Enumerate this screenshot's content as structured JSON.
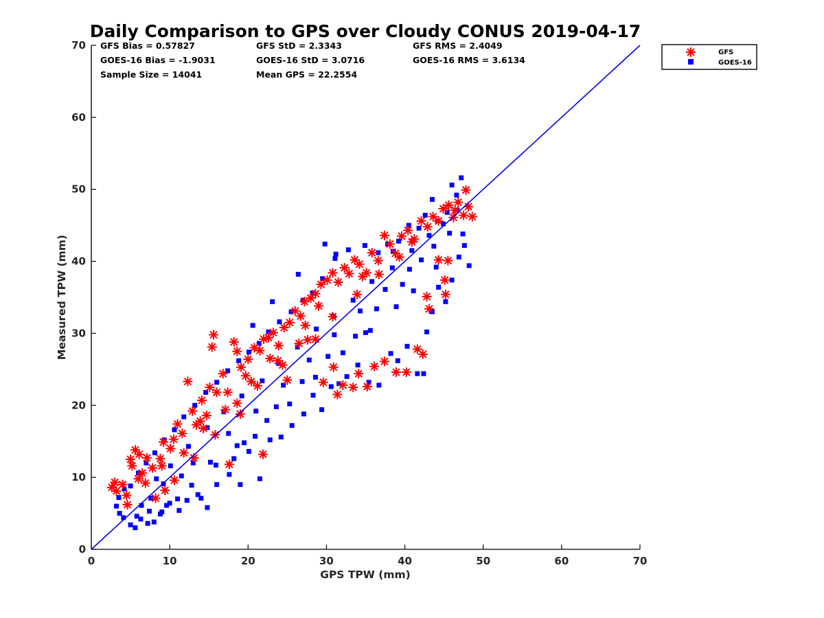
{
  "chart_data": {
    "type": "scatter",
    "title": "Daily Comparison to GPS over Cloudy CONUS 2019-04-17",
    "xlabel": "GPS TPW (mm)",
    "ylabel": "Measured TPW (mm)",
    "xlim": [
      0,
      70
    ],
    "ylim": [
      0,
      70
    ],
    "xticks": [
      "0",
      "10",
      "20",
      "30",
      "40",
      "50",
      "60",
      "70"
    ],
    "yticks": [
      "0",
      "10",
      "20",
      "30",
      "40",
      "50",
      "60",
      "70"
    ],
    "tick_values": [
      0,
      10,
      20,
      30,
      40,
      50,
      60,
      70
    ],
    "legend_position": "outside-top-right",
    "stats": {
      "gfs_bias": "GFS Bias = 0.57827",
      "gfs_std": "GFS StD = 2.3343",
      "gfs_rms": "GFS RMS = 2.4049",
      "goes_bias": "GOES-16 Bias = -1.9031",
      "goes_std": "GOES-16 StD = 3.0716",
      "goes_rms": "GOES-16 RMS = 3.6134",
      "sample_size": "Sample Size = 14041",
      "mean_gps": "Mean GPS = 22.2554"
    },
    "reference_line": {
      "name": "1:1 line",
      "x": [
        0,
        70
      ],
      "y": [
        0,
        70
      ],
      "color": "#0000e0"
    },
    "series": [
      {
        "name": "GFS",
        "marker": "asterisk",
        "color": "#ff0000",
        "bias": 0.57827,
        "std": 2.3343,
        "points": [
          [
            2.6,
            8.6
          ],
          [
            3.0,
            9.3
          ],
          [
            3.2,
            8.1
          ],
          [
            4.0,
            9.0
          ],
          [
            4.5,
            7.5
          ],
          [
            5.0,
            12.5
          ],
          [
            5.2,
            11.6
          ],
          [
            5.6,
            13.8
          ],
          [
            6.1,
            13.2
          ],
          [
            6.5,
            10.6
          ],
          [
            7.1,
            12.7
          ],
          [
            7.8,
            11.3
          ],
          [
            8.8,
            12.6
          ],
          [
            9.2,
            14.9
          ],
          [
            10.1,
            14.0
          ],
          [
            11.0,
            17.4
          ],
          [
            11.6,
            16.1
          ],
          [
            12.3,
            23.3
          ],
          [
            12.9,
            19.2
          ],
          [
            13.4,
            17.3
          ],
          [
            14.1,
            20.7
          ],
          [
            14.7,
            18.6
          ],
          [
            15.1,
            22.5
          ],
          [
            15.6,
            29.8
          ],
          [
            15.4,
            28.1
          ],
          [
            16.0,
            21.8
          ],
          [
            16.8,
            24.4
          ],
          [
            17.4,
            21.8
          ],
          [
            18.2,
            28.8
          ],
          [
            18.6,
            27.5
          ],
          [
            19.1,
            25.3
          ],
          [
            20.0,
            26.4
          ],
          [
            20.8,
            28.0
          ],
          [
            21.5,
            27.6
          ],
          [
            22.0,
            29.2
          ],
          [
            22.6,
            29.4
          ],
          [
            23.2,
            30.1
          ],
          [
            23.9,
            28.3
          ],
          [
            24.6,
            30.8
          ],
          [
            25.3,
            31.5
          ],
          [
            26.0,
            33.1
          ],
          [
            26.7,
            32.4
          ],
          [
            27.2,
            34.4
          ],
          [
            28.0,
            34.9
          ],
          [
            28.6,
            35.5
          ],
          [
            29.3,
            36.8
          ],
          [
            30.1,
            37.4
          ],
          [
            30.8,
            38.4
          ],
          [
            31.5,
            37.1
          ],
          [
            32.3,
            39.1
          ],
          [
            32.9,
            38.3
          ],
          [
            33.6,
            40.2
          ],
          [
            34.2,
            39.6
          ],
          [
            35.1,
            38.4
          ],
          [
            35.8,
            41.2
          ],
          [
            36.6,
            40.1
          ],
          [
            37.4,
            43.6
          ],
          [
            38.1,
            42.4
          ],
          [
            38.8,
            41.1
          ],
          [
            39.6,
            43.5
          ],
          [
            40.4,
            44.3
          ],
          [
            41.2,
            43.1
          ],
          [
            42.1,
            45.6
          ],
          [
            42.9,
            44.8
          ],
          [
            43.6,
            46.2
          ],
          [
            44.3,
            45.6
          ],
          [
            44.9,
            47.3
          ],
          [
            45.6,
            47.8
          ],
          [
            46.2,
            46.1
          ],
          [
            46.8,
            48.2
          ],
          [
            47.5,
            46.4
          ],
          [
            48.1,
            47.6
          ],
          [
            48.6,
            46.2
          ],
          [
            47.8,
            49.9
          ],
          [
            45.2,
            35.4
          ],
          [
            45.1,
            37.4
          ],
          [
            45.5,
            40.1
          ],
          [
            44.3,
            40.2
          ],
          [
            43.1,
            33.4
          ],
          [
            42.3,
            27.1
          ],
          [
            41.6,
            27.8
          ],
          [
            40.2,
            24.6
          ],
          [
            38.9,
            24.6
          ],
          [
            37.4,
            26.1
          ],
          [
            36.1,
            25.4
          ],
          [
            35.2,
            22.6
          ],
          [
            34.1,
            24.4
          ],
          [
            33.4,
            22.5
          ],
          [
            32.1,
            22.8
          ],
          [
            31.4,
            21.5
          ],
          [
            30.9,
            25.3
          ],
          [
            29.6,
            23.2
          ],
          [
            28.6,
            29.2
          ],
          [
            27.3,
            31.1
          ],
          [
            26.5,
            28.6
          ],
          [
            25.0,
            23.5
          ],
          [
            22.8,
            26.5
          ],
          [
            21.9,
            13.2
          ],
          [
            19.0,
            18.8
          ],
          [
            17.6,
            11.8
          ],
          [
            8.2,
            7.1
          ],
          [
            9.4,
            8.2
          ],
          [
            10.6,
            9.6
          ],
          [
            13.1,
            12.7
          ],
          [
            15.8,
            15.9
          ],
          [
            18.6,
            20.3
          ],
          [
            21.2,
            22.7
          ],
          [
            24.4,
            25.6
          ],
          [
            27.6,
            29.1
          ],
          [
            30.8,
            32.3
          ],
          [
            33.9,
            35.4
          ],
          [
            36.7,
            38.2
          ],
          [
            39.3,
            40.6
          ],
          [
            11.8,
            13.4
          ],
          [
            14.3,
            16.8
          ],
          [
            17.1,
            19.4
          ],
          [
            20.4,
            23.3
          ],
          [
            23.8,
            26.2
          ],
          [
            9.0,
            11.6
          ],
          [
            6.9,
            9.2
          ],
          [
            6.0,
            9.8
          ],
          [
            4.6,
            6.2
          ],
          [
            10.5,
            15.3
          ],
          [
            13.9,
            17.8
          ],
          [
            19.7,
            24.1
          ],
          [
            29.0,
            33.8
          ],
          [
            34.6,
            37.9
          ],
          [
            40.9,
            42.7
          ],
          [
            46.4,
            47.1
          ],
          [
            42.8,
            35.1
          ]
        ]
      },
      {
        "name": "GOES-16",
        "marker": "square",
        "color": "#0000ff",
        "bias": -1.9031,
        "std": 3.0716,
        "points": [
          [
            3.2,
            6.0
          ],
          [
            3.6,
            5.0
          ],
          [
            4.1,
            4.4
          ],
          [
            5.0,
            3.4
          ],
          [
            5.6,
            3.0
          ],
          [
            6.3,
            4.2
          ],
          [
            7.2,
            3.6
          ],
          [
            8.0,
            3.8
          ],
          [
            9.0,
            5.2
          ],
          [
            10.0,
            6.4
          ],
          [
            11.0,
            7.0
          ],
          [
            12.2,
            6.8
          ],
          [
            13.6,
            7.6
          ],
          [
            14.8,
            5.8
          ],
          [
            16.0,
            9.0
          ],
          [
            17.6,
            10.4
          ],
          [
            19.0,
            9.0
          ],
          [
            20.1,
            13.6
          ],
          [
            21.5,
            9.8
          ],
          [
            22.8,
            15.2
          ],
          [
            24.2,
            15.6
          ],
          [
            25.6,
            17.2
          ],
          [
            27.1,
            18.8
          ],
          [
            28.3,
            21.4
          ],
          [
            29.4,
            19.4
          ],
          [
            30.6,
            22.6
          ],
          [
            31.6,
            23.0
          ],
          [
            32.6,
            24.0
          ],
          [
            34.0,
            25.6
          ],
          [
            35.4,
            23.2
          ],
          [
            36.7,
            22.8
          ],
          [
            38.2,
            27.2
          ],
          [
            39.1,
            26.2
          ],
          [
            40.3,
            28.2
          ],
          [
            41.6,
            24.4
          ],
          [
            42.8,
            30.2
          ],
          [
            43.5,
            33.0
          ],
          [
            44.3,
            36.4
          ],
          [
            45.2,
            34.4
          ],
          [
            46.0,
            37.4
          ],
          [
            46.9,
            40.6
          ],
          [
            47.6,
            42.2
          ],
          [
            48.2,
            39.4
          ],
          [
            47.4,
            43.8
          ],
          [
            46.6,
            49.2
          ],
          [
            47.2,
            51.6
          ],
          [
            46.0,
            50.6
          ],
          [
            45.4,
            46.8
          ],
          [
            44.2,
            45.6
          ],
          [
            43.5,
            48.6
          ],
          [
            42.6,
            46.4
          ],
          [
            41.8,
            44.6
          ],
          [
            40.5,
            45.0
          ],
          [
            39.2,
            42.8
          ],
          [
            37.8,
            42.4
          ],
          [
            36.6,
            41.2
          ],
          [
            34.9,
            42.2
          ],
          [
            32.8,
            41.6
          ],
          [
            31.1,
            40.4
          ],
          [
            29.5,
            37.6
          ],
          [
            28.2,
            35.6
          ],
          [
            27.0,
            34.6
          ],
          [
            25.5,
            33.0
          ],
          [
            24.0,
            31.6
          ],
          [
            22.6,
            30.2
          ],
          [
            21.4,
            28.6
          ],
          [
            20.1,
            27.4
          ],
          [
            18.8,
            26.2
          ],
          [
            17.4,
            24.8
          ],
          [
            16.0,
            23.2
          ],
          [
            14.6,
            21.8
          ],
          [
            13.2,
            20.0
          ],
          [
            11.8,
            18.4
          ],
          [
            10.6,
            16.6
          ],
          [
            9.3,
            15.2
          ],
          [
            8.1,
            13.4
          ],
          [
            7.0,
            12.0
          ],
          [
            6.0,
            10.6
          ],
          [
            5.0,
            8.8
          ],
          [
            4.2,
            8.4
          ],
          [
            3.5,
            7.2
          ],
          [
            29.8,
            42.4
          ],
          [
            31.2,
            41.0
          ],
          [
            26.4,
            38.2
          ],
          [
            23.1,
            34.4
          ],
          [
            20.6,
            31.1
          ],
          [
            38.5,
            41.4
          ],
          [
            42.4,
            24.4
          ],
          [
            35.6,
            30.4
          ],
          [
            18.6,
            14.4
          ],
          [
            15.2,
            12.1
          ],
          [
            11.5,
            10.2
          ],
          [
            9.2,
            9.1
          ],
          [
            7.6,
            7.1
          ],
          [
            6.4,
            6.1
          ],
          [
            13.0,
            12.0
          ],
          [
            17.5,
            16.1
          ],
          [
            21.0,
            19.2
          ],
          [
            24.5,
            22.8
          ],
          [
            27.8,
            26.3
          ],
          [
            31.0,
            29.8
          ],
          [
            34.3,
            33.1
          ],
          [
            37.5,
            36.1
          ],
          [
            40.6,
            38.9
          ],
          [
            43.7,
            42.1
          ],
          [
            8.3,
            9.8
          ],
          [
            10.1,
            11.6
          ],
          [
            12.4,
            14.3
          ],
          [
            14.8,
            16.9
          ],
          [
            16.9,
            19.1
          ],
          [
            19.2,
            21.3
          ],
          [
            21.8,
            23.4
          ],
          [
            23.9,
            25.8
          ],
          [
            26.3,
            28.1
          ],
          [
            28.7,
            30.6
          ],
          [
            30.9,
            32.4
          ],
          [
            33.4,
            34.6
          ],
          [
            35.8,
            37.2
          ],
          [
            38.4,
            39.1
          ],
          [
            40.9,
            41.5
          ],
          [
            43.1,
            43.6
          ],
          [
            44.9,
            45.2
          ],
          [
            46.7,
            47.1
          ],
          [
            9.6,
            6.1
          ],
          [
            12.8,
            8.9
          ],
          [
            15.9,
            11.7
          ],
          [
            19.5,
            14.8
          ],
          [
            22.4,
            17.9
          ],
          [
            25.3,
            20.2
          ],
          [
            28.6,
            23.9
          ],
          [
            32.1,
            27.3
          ],
          [
            35.0,
            30.1
          ],
          [
            38.9,
            33.7
          ],
          [
            41.1,
            35.9
          ],
          [
            44.0,
            39.2
          ],
          [
            11.2,
            5.4
          ],
          [
            14.0,
            7.1
          ],
          [
            5.8,
            4.6
          ],
          [
            7.4,
            5.3
          ],
          [
            8.8,
            4.9
          ],
          [
            18.2,
            12.6
          ],
          [
            20.9,
            15.7
          ],
          [
            23.6,
            19.8
          ],
          [
            26.9,
            23.3
          ],
          [
            30.2,
            26.8
          ],
          [
            33.7,
            29.6
          ],
          [
            36.4,
            33.4
          ],
          [
            39.7,
            36.8
          ],
          [
            42.1,
            40.2
          ],
          [
            45.7,
            43.9
          ]
        ]
      }
    ]
  }
}
